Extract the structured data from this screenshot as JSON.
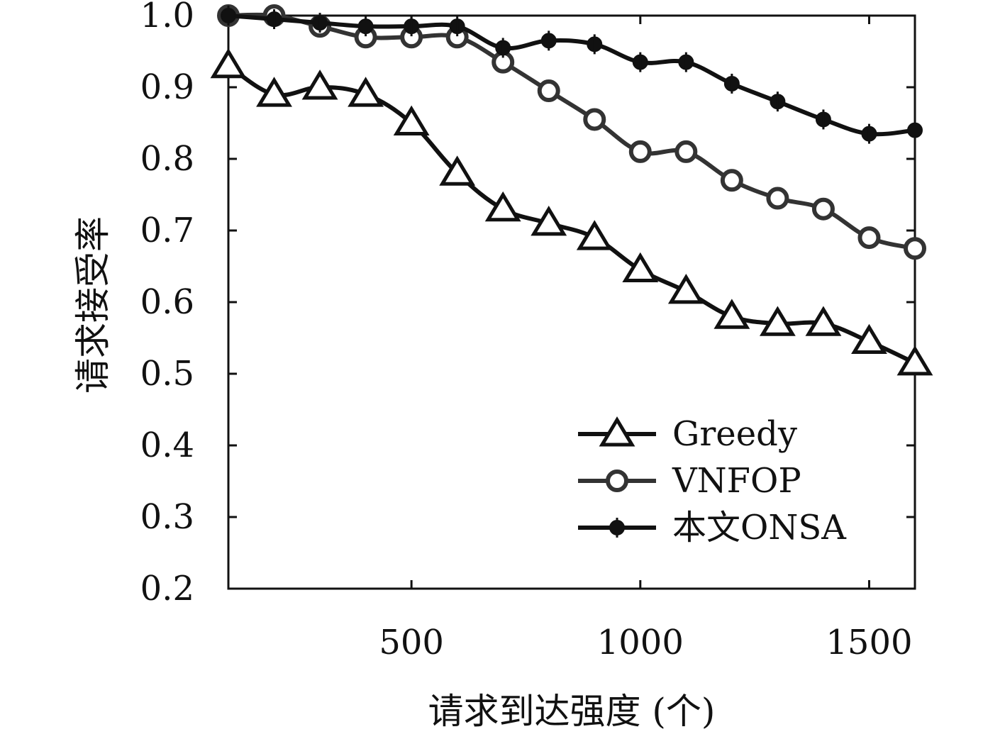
{
  "chart_data": {
    "type": "line",
    "xlabel": "请求到达强度 (个)",
    "ylabel": "请求接受率",
    "xlim": [
      100,
      1600
    ],
    "ylim": [
      0.2,
      1.0
    ],
    "x_ticks": [
      500,
      1000,
      1500
    ],
    "x_tick_labels": [
      "500",
      "1000",
      "1500"
    ],
    "y_ticks": [
      0.2,
      0.3,
      0.4,
      0.5,
      0.6,
      0.7,
      0.8,
      0.9,
      1.0
    ],
    "y_tick_labels": [
      "0.2",
      "0.3",
      "0.4",
      "0.5",
      "0.6",
      "0.7",
      "0.8",
      "0.9",
      "1.0"
    ],
    "grid": false,
    "legend_position": "bottom-right",
    "x": [
      100,
      200,
      300,
      400,
      500,
      600,
      700,
      800,
      900,
      1000,
      1100,
      1200,
      1300,
      1400,
      1500,
      1600
    ],
    "series": [
      {
        "name": "Greedy",
        "marker": "triangle",
        "color": "#111111",
        "values": [
          0.93,
          0.89,
          0.9,
          0.89,
          0.85,
          0.78,
          0.73,
          0.71,
          0.69,
          0.645,
          0.615,
          0.58,
          0.57,
          0.57,
          0.545,
          0.515
        ]
      },
      {
        "name": "VNFOP",
        "marker": "circle",
        "color": "#333333",
        "values": [
          1.0,
          1.0,
          0.985,
          0.97,
          0.97,
          0.97,
          0.935,
          0.895,
          0.855,
          0.81,
          0.81,
          0.77,
          0.745,
          0.73,
          0.69,
          0.675
        ]
      },
      {
        "name": "本文ONSA",
        "marker": "dot",
        "color": "#111111",
        "values": [
          1.0,
          0.995,
          0.99,
          0.985,
          0.985,
          0.985,
          0.955,
          0.965,
          0.96,
          0.935,
          0.935,
          0.905,
          0.88,
          0.855,
          0.835,
          0.84
        ]
      }
    ]
  }
}
